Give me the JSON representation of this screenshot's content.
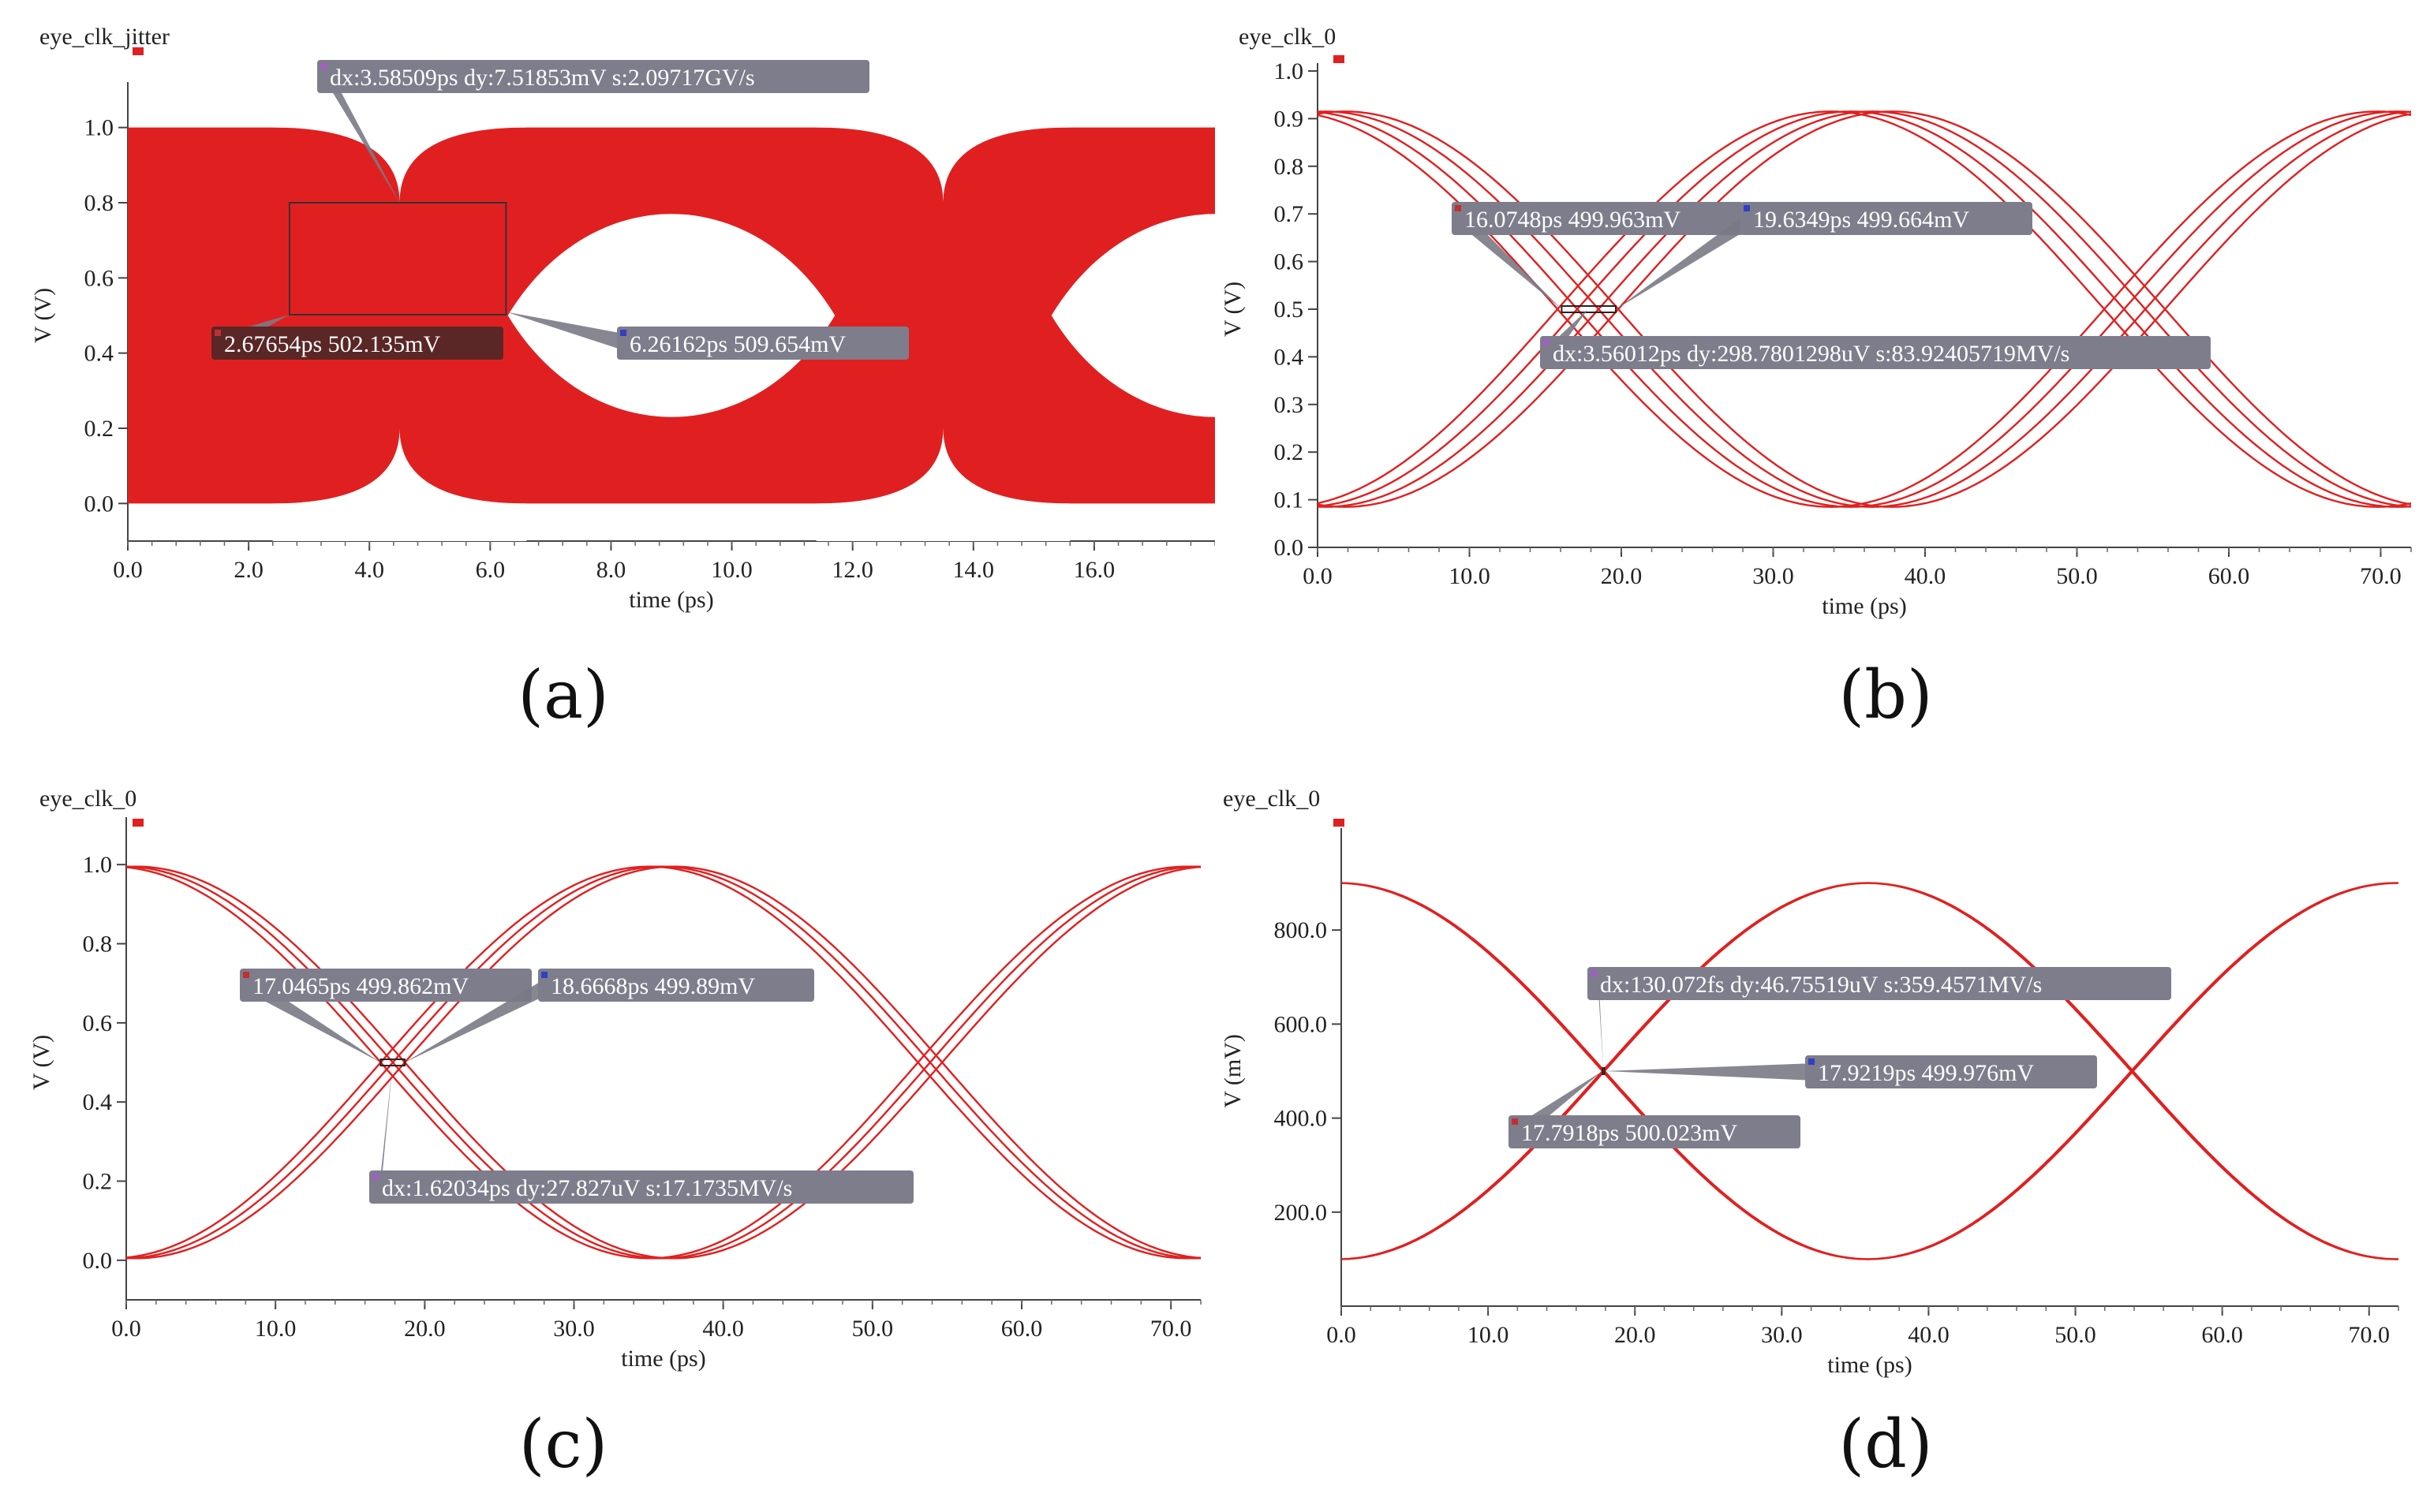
{
  "chart_data": [
    {
      "type": "line",
      "panel_label": "(a)",
      "title": "eye_clk_jitter",
      "xlabel": "time (ps)",
      "ylabel": "V (V)",
      "xlim": [
        0,
        18
      ],
      "ylim": [
        -0.1,
        1.1
      ],
      "x_ticks": [
        "0.0",
        "2.0",
        "4.0",
        "6.0",
        "8.0",
        "10.0",
        "12.0",
        "14.0",
        "16.0"
      ],
      "y_ticks": [
        "0.0",
        "0.2",
        "0.4",
        "0.6",
        "0.8",
        "1.0"
      ],
      "trace_color": "#e02020",
      "eye": {
        "low": 0.0,
        "high": 1.0,
        "period_ps": 9.0,
        "first_crossing_ps": 4.5,
        "jitter_ps": 3.58509,
        "filled": true
      },
      "series": [],
      "markers": [
        {
          "kind": "point",
          "x": 2.67654,
          "y": 0.502135,
          "text": "2.67654ps 502.135mV",
          "color": "#c03030",
          "label_style": "dark"
        },
        {
          "kind": "point",
          "x": 6.26162,
          "y": 0.509654,
          "text": "6.26162ps 509.654mV",
          "color": "#3040c0",
          "label_style": "gray"
        },
        {
          "kind": "delta",
          "x": 4.5,
          "y": 0.8,
          "text": "dx:3.58509ps dy:7.51853mV s:2.09717GV/s",
          "color": "#a060c0",
          "label_style": "gray"
        }
      ]
    },
    {
      "type": "line",
      "panel_label": "(b)",
      "title": "eye_clk_0",
      "xlabel": "time (ps)",
      "ylabel": "V (V)",
      "xlim": [
        0,
        72
      ],
      "ylim": [
        0,
        1.0
      ],
      "x_ticks": [
        "0.0",
        "10.0",
        "20.0",
        "30.0",
        "40.0",
        "50.0",
        "60.0",
        "70.0"
      ],
      "y_ticks": [
        "0.0",
        "0.1",
        "0.2",
        "0.3",
        "0.4",
        "0.5",
        "0.6",
        "0.7",
        "0.8",
        "0.9",
        "1.0"
      ],
      "trace_color": "#e02020",
      "wave": {
        "center": 0.5,
        "amplitude": 0.415,
        "period_ps": 72,
        "rise_cross_ps": 17.8,
        "shifts_ps": [
          -2.0,
          -0.7,
          0.7,
          2.0
        ]
      },
      "series": [],
      "markers": [
        {
          "kind": "point",
          "x": 16.0748,
          "y": 0.499963,
          "text": "16.0748ps 499.963mV",
          "color": "#c03030",
          "label_style": "gray"
        },
        {
          "kind": "point",
          "x": 19.6349,
          "y": 0.499664,
          "text": "19.6349ps 499.664mV",
          "color": "#3040c0",
          "label_style": "gray"
        },
        {
          "kind": "delta",
          "x": 17.8,
          "y": 0.5,
          "text": "dx:3.56012ps dy:298.7801298uV s:83.92405719MV/s",
          "color": "#a060c0",
          "label_style": "gray"
        }
      ]
    },
    {
      "type": "line",
      "panel_label": "(c)",
      "title": "eye_clk_0",
      "xlabel": "time (ps)",
      "ylabel": "V (V)",
      "xlim": [
        0,
        72
      ],
      "ylim": [
        -0.1,
        1.1
      ],
      "x_ticks": [
        "0.0",
        "10.0",
        "20.0",
        "30.0",
        "40.0",
        "50.0",
        "60.0",
        "70.0"
      ],
      "y_ticks": [
        "0.0",
        "0.2",
        "0.4",
        "0.6",
        "0.8",
        "1.0"
      ],
      "trace_color": "#e02020",
      "wave": {
        "center": 0.5,
        "amplitude": 0.495,
        "period_ps": 72,
        "rise_cross_ps": 17.86,
        "shifts_ps": [
          -0.81,
          0.0,
          0.81
        ]
      },
      "series": [],
      "markers": [
        {
          "kind": "point",
          "x": 17.0465,
          "y": 0.499862,
          "text": "17.0465ps 499.862mV",
          "color": "#c03030",
          "label_style": "gray"
        },
        {
          "kind": "point",
          "x": 18.6668,
          "y": 0.49989,
          "text": "18.6668ps 499.89mV",
          "color": "#3040c0",
          "label_style": "gray"
        },
        {
          "kind": "delta",
          "x": 17.86,
          "y": 0.5,
          "text": "dx:1.62034ps dy:27.827uV s:17.1735MV/s",
          "color": "#a060c0",
          "label_style": "gray"
        }
      ]
    },
    {
      "type": "line",
      "panel_label": "(d)",
      "title": "eye_clk_0",
      "xlabel": "time (ps)",
      "ylabel": "V (mV)",
      "xlim": [
        0,
        72
      ],
      "ylim": [
        0,
        1000
      ],
      "x_ticks": [
        "0.0",
        "10.0",
        "20.0",
        "30.0",
        "40.0",
        "50.0",
        "60.0",
        "70.0"
      ],
      "y_ticks": [
        "200.0",
        "400.0",
        "600.0",
        "800.0"
      ],
      "trace_color": "#e02020",
      "wave": {
        "center": 500,
        "amplitude": 400,
        "period_ps": 72,
        "rise_cross_ps": 17.86,
        "shifts_ps": [
          -0.065,
          0.065
        ]
      },
      "series": [],
      "markers": [
        {
          "kind": "point",
          "x": 17.7918,
          "y": 500.023,
          "text": "17.7918ps 500.023mV",
          "color": "#c03030",
          "label_style": "gray"
        },
        {
          "kind": "point",
          "x": 17.9219,
          "y": 499.976,
          "text": "17.9219ps 499.976mV",
          "color": "#3040c0",
          "label_style": "gray"
        },
        {
          "kind": "delta",
          "x": 17.86,
          "y": 500,
          "text": "dx:130.072fs dy:46.75519uV s:359.4571MV/s",
          "color": "#a060c0",
          "label_style": "gray"
        }
      ]
    }
  ]
}
